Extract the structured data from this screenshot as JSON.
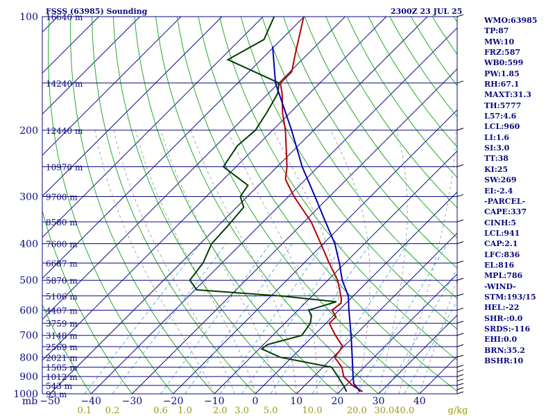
{
  "header": {
    "station": "FSSS (63985) Sounding",
    "datetime": "2300Z 23 JUL 25"
  },
  "indices": [
    "WMO:63985",
    "TP:87",
    "MW:10",
    "FRZ:587",
    "WB0:599",
    "PW:1.85",
    "RH:67.1",
    "MAXT:31.3",
    "TH:5777",
    "L57:4.6",
    "LCL:960",
    "LI:1.6",
    "SI:3.0",
    "TT:38",
    "KI:25",
    "SW:269",
    "EI:-2.4",
    "-PARCEL-",
    "CAPE:337",
    "CINH:5",
    "LCL:941",
    "CAP:2.1",
    "LFC:836",
    "EL:816",
    "MPL:786",
    "-WIND-",
    "STM:193/15",
    "HEL:-22",
    "SHR-:0.0",
    "SRDS:-116",
    "EHI:0.0",
    "BRN:35.2",
    "BSHR:10"
  ],
  "colors": {
    "frame": "#0a0a80",
    "isobar": "#0a0a80",
    "isotherm": "#0a0a80",
    "dry_adiabat": "#10a010",
    "moist_adiabat": "#909090",
    "mixing_ratio": "#4aa8e0",
    "temperature": "#b00000",
    "dewpoint": "#003c00",
    "parcel": "#0000b0",
    "mixing_label": "#9a9a10"
  },
  "chart_data": {
    "type": "skew-t log-p sounding",
    "title": "FSSS (63985) Sounding",
    "xlabel": "mb",
    "x_unit": "°C",
    "ylim_hpa": [
      1000,
      100
    ],
    "pressure_ticks": [
      {
        "p": 100,
        "label": "100"
      },
      {
        "p": 200,
        "label": "200"
      },
      {
        "p": 300,
        "label": "300"
      },
      {
        "p": 400,
        "label": "400"
      },
      {
        "p": 500,
        "label": "500"
      },
      {
        "p": 600,
        "label": "600"
      },
      {
        "p": 700,
        "label": "700"
      },
      {
        "p": 800,
        "label": "800"
      },
      {
        "p": 900,
        "label": "900"
      },
      {
        "p": 1000,
        "label": "1000"
      }
    ],
    "temperature_ticks": [
      -50,
      -40,
      -30,
      -20,
      -10,
      0,
      10,
      20,
      30,
      40
    ],
    "mixing_ratio_ticks": [
      "0.1",
      "0.2",
      "0.6",
      "1.0",
      "2.0",
      "3.0",
      "5.0",
      "10.0",
      "20.0",
      "30.0",
      "40.0"
    ],
    "mixing_ratio_unit": "g/kg",
    "height_levels": [
      {
        "p": 100,
        "height": "16640 m"
      },
      {
        "p": 150,
        "height": "14240 m"
      },
      {
        "p": 200,
        "height": "12440 m"
      },
      {
        "p": 250,
        "height": "10970 m"
      },
      {
        "p": 300,
        "height": "9700 m"
      },
      {
        "p": 350,
        "height": "8580 m"
      },
      {
        "p": 400,
        "height": "7600 m"
      },
      {
        "p": 450,
        "height": "6687 m"
      },
      {
        "p": 500,
        "height": "5870 m"
      },
      {
        "p": 550,
        "height": "5106 m"
      },
      {
        "p": 600,
        "height": "4407 m"
      },
      {
        "p": 650,
        "height": "3759 m"
      },
      {
        "p": 700,
        "height": "3148 m"
      },
      {
        "p": 750,
        "height": "2569 m"
      },
      {
        "p": 800,
        "height": "2021 m"
      },
      {
        "p": 850,
        "height": "1505 m"
      },
      {
        "p": 900,
        "height": "1012 m"
      },
      {
        "p": 950,
        "height": "543 m"
      },
      {
        "p": 1000,
        "height": "93 m"
      }
    ],
    "temperature_profile": [
      {
        "p": 987,
        "t": 25.6
      },
      {
        "p": 950,
        "t": 21.6
      },
      {
        "p": 900,
        "t": 17.3
      },
      {
        "p": 850,
        "t": 14.6
      },
      {
        "p": 800,
        "t": 10.4
      },
      {
        "p": 750,
        "t": 9.8
      },
      {
        "p": 700,
        "t": 5.3
      },
      {
        "p": 650,
        "t": 0.8
      },
      {
        "p": 625,
        "t": 0.9
      },
      {
        "p": 600,
        "t": -1.7
      },
      {
        "p": 575,
        "t": -1.2
      },
      {
        "p": 560,
        "t": -2.2
      },
      {
        "p": 500,
        "t": -7.6
      },
      {
        "p": 450,
        "t": -13.9
      },
      {
        "p": 400,
        "t": -20.6
      },
      {
        "p": 350,
        "t": -28.3
      },
      {
        "p": 300,
        "t": -38.6
      },
      {
        "p": 270,
        "t": -44.9
      },
      {
        "p": 250,
        "t": -47.6
      },
      {
        "p": 200,
        "t": -56.9
      },
      {
        "p": 180,
        "t": -61.8
      },
      {
        "p": 160,
        "t": -66.6
      },
      {
        "p": 150,
        "t": -69.6
      },
      {
        "p": 140,
        "t": -69.6
      },
      {
        "p": 125,
        "t": -73.2
      },
      {
        "p": 100,
        "t": -80.1
      }
    ],
    "dewpoint_profile": [
      {
        "p": 987,
        "td": 21.7
      },
      {
        "p": 950,
        "td": 19.4
      },
      {
        "p": 900,
        "td": 15.9
      },
      {
        "p": 850,
        "td": 12.1
      },
      {
        "p": 800,
        "td": -2.8
      },
      {
        "p": 760,
        "td": -9.4
      },
      {
        "p": 740,
        "td": -9.0
      },
      {
        "p": 700,
        "td": -2.9
      },
      {
        "p": 650,
        "td": -3.8
      },
      {
        "p": 620,
        "td": -5.4
      },
      {
        "p": 600,
        "td": -7.4
      },
      {
        "p": 570,
        "td": -2.7
      },
      {
        "p": 550,
        "td": -17.8
      },
      {
        "p": 530,
        "td": -39.6
      },
      {
        "p": 500,
        "td": -43.6
      },
      {
        "p": 450,
        "td": -44.6
      },
      {
        "p": 400,
        "td": -47.2
      },
      {
        "p": 360,
        "td": -47.6
      },
      {
        "p": 320,
        "td": -48.3
      },
      {
        "p": 300,
        "td": -51.7
      },
      {
        "p": 280,
        "td": -52.6
      },
      {
        "p": 250,
        "td": -63.1
      },
      {
        "p": 220,
        "td": -64.8
      },
      {
        "p": 200,
        "td": -64.2
      },
      {
        "p": 180,
        "td": -65.7
      },
      {
        "p": 160,
        "td": -67.7
      },
      {
        "p": 150,
        "td": -69.9
      },
      {
        "p": 130,
        "td": -88.1
      },
      {
        "p": 115,
        "td": -84.2
      },
      {
        "p": 100,
        "td": -87.3
      }
    ],
    "parcel_profile": [
      {
        "p": 987,
        "t": 25.0
      },
      {
        "p": 940,
        "t": 21.5
      },
      {
        "p": 900,
        "t": 19.6
      },
      {
        "p": 800,
        "t": 14.7
      },
      {
        "p": 700,
        "t": 9.1
      },
      {
        "p": 600,
        "t": 2.4
      },
      {
        "p": 550,
        "t": -1.2
      },
      {
        "p": 500,
        "t": -6.5
      },
      {
        "p": 450,
        "t": -11.4
      },
      {
        "p": 400,
        "t": -17.2
      },
      {
        "p": 350,
        "t": -24.8
      },
      {
        "p": 300,
        "t": -33.5
      },
      {
        "p": 250,
        "t": -43.9
      },
      {
        "p": 200,
        "t": -55.4
      },
      {
        "p": 150,
        "t": -70.8
      },
      {
        "p": 120,
        "t": -80.4
      }
    ]
  }
}
